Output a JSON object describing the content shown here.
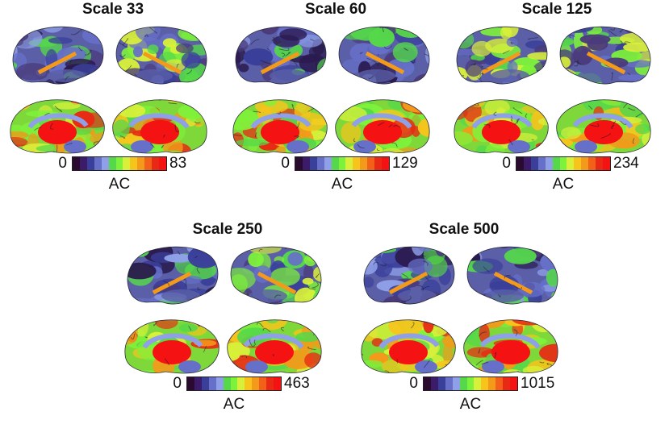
{
  "figure": {
    "panels": [
      {
        "title": "Scale 33",
        "cbar_min": "0",
        "cbar_max": "83",
        "cbar_label": "AC"
      },
      {
        "title": "Scale 60",
        "cbar_min": "0",
        "cbar_max": "129",
        "cbar_label": "AC"
      },
      {
        "title": "Scale 125",
        "cbar_min": "0",
        "cbar_max": "234",
        "cbar_label": "AC"
      },
      {
        "title": "Scale 250",
        "cbar_min": "0",
        "cbar_max": "463",
        "cbar_label": "AC"
      },
      {
        "title": "Scale 500",
        "cbar_min": "0",
        "cbar_max": "1015",
        "cbar_label": "AC"
      }
    ],
    "colormap": [
      "#2a0a2e",
      "#3b1b6a",
      "#3a3f9a",
      "#6670c8",
      "#8fa0e8",
      "#55d84a",
      "#7ef23a",
      "#d9f03a",
      "#f7c41c",
      "#f39a1a",
      "#f2601a",
      "#e82a14",
      "#f41212"
    ]
  }
}
